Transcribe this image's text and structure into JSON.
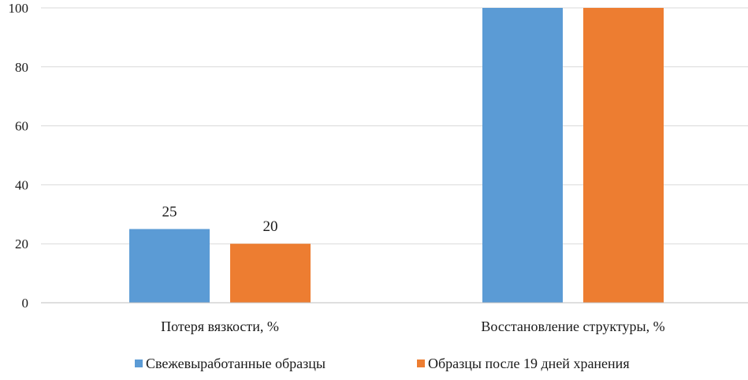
{
  "chart_data": {
    "type": "bar",
    "categories": [
      "Потеря вязкости, %",
      "Восстановление  структуры, %"
    ],
    "series": [
      {
        "name": "Свежевыработанные  образцы",
        "values": [
          25,
          100
        ],
        "color": "#5b9bd5",
        "data_labels": [
          "25",
          ""
        ]
      },
      {
        "name": "Образцы после 19 дней  хранения",
        "values": [
          20,
          100
        ],
        "color": "#ed7d31",
        "data_labels": [
          "20",
          ""
        ]
      }
    ],
    "y_ticks": [
      0,
      20,
      40,
      60,
      80,
      100
    ],
    "ylim": [
      0,
      100
    ],
    "grid": true,
    "grid_color": "#d9d9d9",
    "legend_position": "bottom"
  }
}
